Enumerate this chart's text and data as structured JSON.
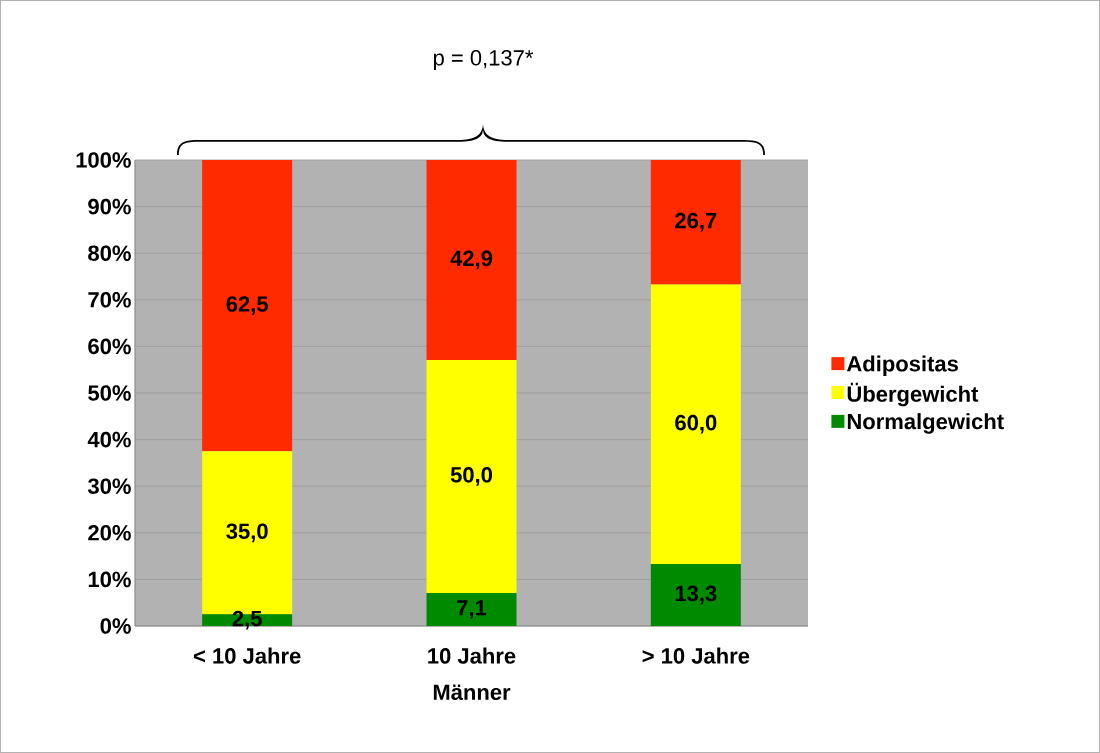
{
  "chart_data": {
    "type": "bar",
    "stacked": true,
    "xlabel": "Männer",
    "categories": [
      "< 10 Jahre",
      "10 Jahre",
      "> 10 Jahre"
    ],
    "series": [
      {
        "name": "Normalgewicht",
        "color": "#008a00",
        "values": [
          2.5,
          7.1,
          13.3
        ],
        "value_labels": [
          "2,5",
          "7,1",
          "13,3"
        ]
      },
      {
        "name": "Übergewicht",
        "color": "#ffff00",
        "values": [
          35.0,
          50.0,
          60.0
        ],
        "value_labels": [
          "35,0",
          "50,0",
          "60,0"
        ]
      },
      {
        "name": "Adipositas",
        "color": "#ff2a00",
        "values": [
          62.5,
          42.9,
          26.7
        ],
        "value_labels": [
          "62,5",
          "42,9",
          "26,7"
        ]
      }
    ],
    "ylim": [
      0,
      100
    ],
    "yticks": [
      {
        "value": 0,
        "label": "0%"
      },
      {
        "value": 10,
        "label": "10%"
      },
      {
        "value": 20,
        "label": "20%"
      },
      {
        "value": 30,
        "label": "30%"
      },
      {
        "value": 40,
        "label": "40%"
      },
      {
        "value": 50,
        "label": "50%"
      },
      {
        "value": 60,
        "label": "60%"
      },
      {
        "value": 70,
        "label": "70%"
      },
      {
        "value": 80,
        "label": "80%"
      },
      {
        "value": 90,
        "label": "90%"
      },
      {
        "value": 100,
        "label": "100%"
      }
    ],
    "grid": "y",
    "legend": "right",
    "annotations": [
      "p = 0,137*"
    ]
  }
}
